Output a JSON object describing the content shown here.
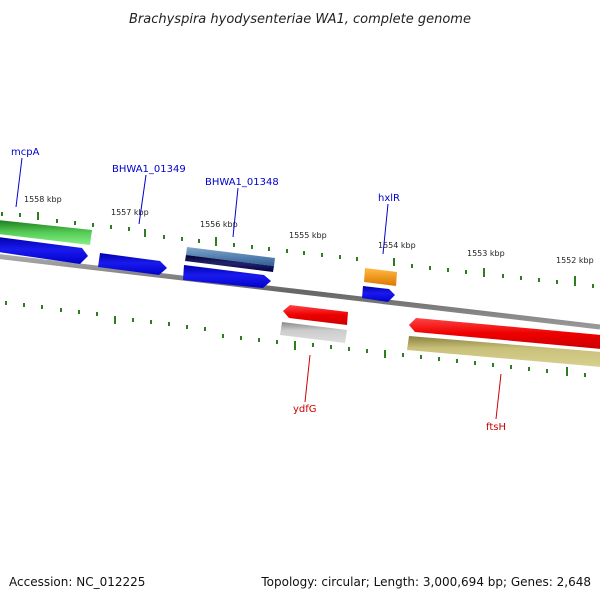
{
  "title": "Brachyspira hyodysenteriae WA1, complete genome",
  "footer": {
    "accession": "Accession: NC_012225",
    "summary": "Topology: circular; Length: 3,000,694 bp; Genes: 2,648"
  },
  "colors": {
    "backbone": "#8a8a8a",
    "tick": "#2e7d1e",
    "forward_label": "#0000cc",
    "reverse_label": "#cc0000"
  },
  "ruler_labels": [
    "1558 kbp",
    "1557 kbp",
    "1556 kbp",
    "1555 kbp",
    "1554 kbp",
    "1553 kbp",
    "1552 kbp"
  ],
  "genes": {
    "forward": [
      {
        "name": "mcpA",
        "strand": "+",
        "color": "#0000ee"
      },
      {
        "name": "BHWA1_01349",
        "strand": "+",
        "color": "#0000ee"
      },
      {
        "name": "BHWA1_01348",
        "strand": "+",
        "color": "#0000ee"
      },
      {
        "name": "hxlR",
        "strand": "+",
        "color": "#0000ee"
      }
    ],
    "reverse": [
      {
        "name": "ydfG",
        "strand": "-",
        "color": "#ee0000"
      },
      {
        "name": "ftsH",
        "strand": "-",
        "color": "#ee0000"
      }
    ]
  },
  "feature_colors": {
    "cds_forward": "#1010e0",
    "cds_reverse": "#ee1111",
    "gene_green": "#33aa33",
    "gene_steel": "#4477aa",
    "gene_navy": "#000055",
    "gene_orange": "#ee8800",
    "gene_gray": "#aaaaaa",
    "gene_khaki": "#b8b060"
  }
}
